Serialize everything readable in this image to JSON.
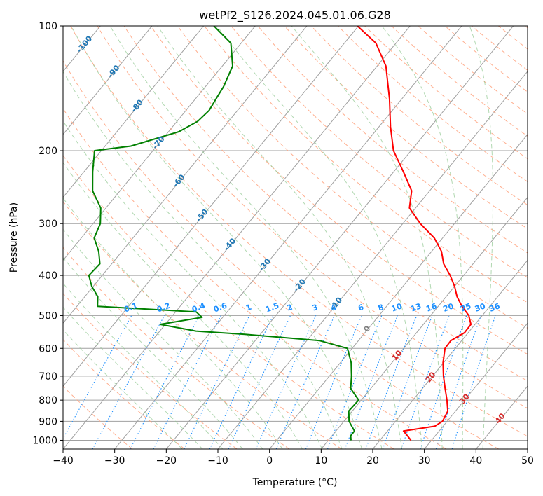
{
  "chart_data": {
    "type": "line",
    "diagram": "skew-t log-p",
    "title": "wetPf2_S126.2024.045.01.06.G28",
    "xlabel": "Temperature (°C)",
    "ylabel": "Pressure (hPa)",
    "xlim": [
      -40,
      50
    ],
    "ylim": [
      1050,
      100
    ],
    "y_scale": "log",
    "grid": true,
    "x_ticks": [
      -40,
      -30,
      -20,
      -10,
      0,
      10,
      20,
      30,
      40,
      50
    ],
    "x_tick_labels": [
      "−40",
      "−30",
      "−20",
      "−10",
      "0",
      "10",
      "20",
      "30",
      "40",
      "50"
    ],
    "y_ticks": [
      100,
      200,
      300,
      400,
      500,
      600,
      700,
      800,
      900,
      1000
    ],
    "y_tick_labels": [
      "100",
      "200",
      "300",
      "400",
      "500",
      "600",
      "700",
      "800",
      "900",
      "1000"
    ],
    "colors": {
      "temperature": "#ff0000",
      "dewpoint": "#008000",
      "isotherm": "#a0a0a0",
      "dry_adiabat": "#ffa07a",
      "moist_adiabat": "#90c890",
      "mixing_ratio": "#1e90ff",
      "isotherm_label": "#1f77b4",
      "warm_isotherm_label": "#d62728",
      "zero_label": "#7f7f7f"
    },
    "series": [
      {
        "name": "",
        "role": "temperature",
        "points": [
          [
            1000,
            26.0
          ],
          [
            975,
            24.6
          ],
          [
            950,
            23.1
          ],
          [
            925,
            28.4
          ],
          [
            900,
            29.1
          ],
          [
            850,
            28.5
          ],
          [
            800,
            26.6
          ],
          [
            750,
            24.4
          ],
          [
            700,
            22.1
          ],
          [
            650,
            19.9
          ],
          [
            600,
            18.0
          ],
          [
            575,
            17.9
          ],
          [
            550,
            19.3
          ],
          [
            525,
            19.2
          ],
          [
            500,
            17.4
          ],
          [
            475,
            14.6
          ],
          [
            450,
            12.1
          ],
          [
            425,
            10.0
          ],
          [
            400,
            7.4
          ],
          [
            375,
            4.3
          ],
          [
            350,
            1.9
          ],
          [
            325,
            -1.6
          ],
          [
            300,
            -6.6
          ],
          [
            275,
            -11.2
          ],
          [
            250,
            -13.5
          ],
          [
            225,
            -18.1
          ],
          [
            200,
            -23.4
          ],
          [
            175,
            -27.8
          ],
          [
            150,
            -32.4
          ],
          [
            125,
            -38.3
          ],
          [
            110,
            -43.9
          ],
          [
            100,
            -50.2
          ]
        ]
      },
      {
        "name": "",
        "role": "dewpoint",
        "points": [
          [
            1000,
            14.4
          ],
          [
            975,
            13.6
          ],
          [
            950,
            13.6
          ],
          [
            900,
            11.0
          ],
          [
            850,
            9.3
          ],
          [
            800,
            9.5
          ],
          [
            750,
            6.1
          ],
          [
            700,
            4.3
          ],
          [
            650,
            2.1
          ],
          [
            600,
            -0.9
          ],
          [
            575,
            -7.5
          ],
          [
            555,
            -23.0
          ],
          [
            545,
            -33.0
          ],
          [
            525,
            -41.0
          ],
          [
            505,
            -34.0
          ],
          [
            490,
            -36.0
          ],
          [
            475,
            -56.0
          ],
          [
            450,
            -57.5
          ],
          [
            425,
            -60.3
          ],
          [
            400,
            -62.6
          ],
          [
            375,
            -62.3
          ],
          [
            350,
            -64.5
          ],
          [
            325,
            -67.5
          ],
          [
            300,
            -68.6
          ],
          [
            275,
            -71.0
          ],
          [
            250,
            -75.3
          ],
          [
            225,
            -78.3
          ],
          [
            200,
            -81.3
          ],
          [
            195,
            -75.0
          ],
          [
            180,
            -68.0
          ],
          [
            170,
            -66.0
          ],
          [
            160,
            -65.5
          ],
          [
            150,
            -66.0
          ],
          [
            140,
            -66.5
          ],
          [
            125,
            -68.0
          ],
          [
            110,
            -72.0
          ],
          [
            100,
            -78.0
          ]
        ]
      }
    ],
    "isotherm_labels": [
      "-100",
      "-90",
      "-80",
      "-70",
      "-60",
      "-50",
      "-40",
      "-30",
      "-20",
      "-10",
      "0",
      "10",
      "20",
      "30",
      "40"
    ],
    "mixing_ratio_labels": [
      "0.1",
      "0.2",
      "0.4",
      "0.6",
      "1",
      "1.5",
      "2",
      "3",
      "4",
      "6",
      "8",
      "10",
      "13",
      "16",
      "20",
      "25",
      "30",
      "36"
    ]
  }
}
